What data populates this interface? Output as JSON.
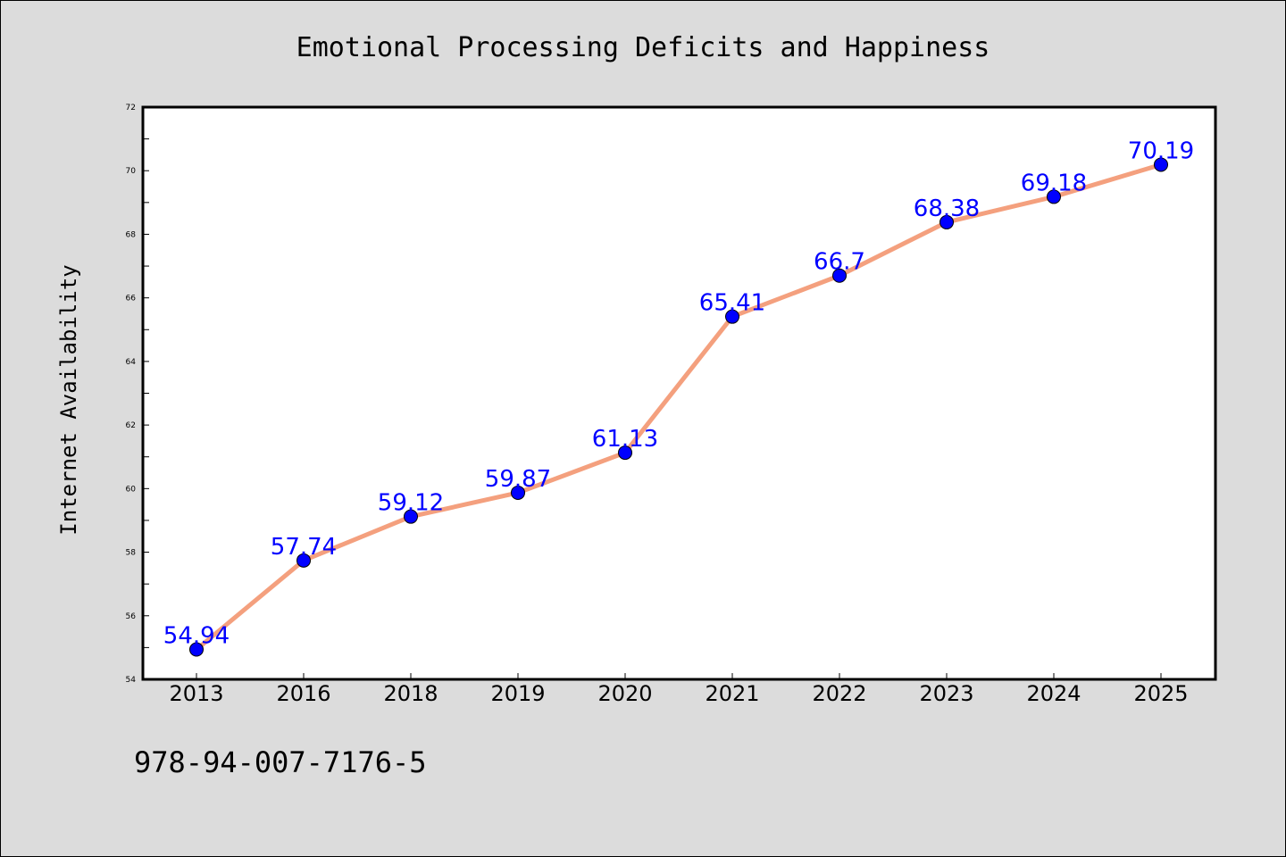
{
  "chart_data": {
    "type": "line",
    "title": "Emotional Processing Deficits and Happiness",
    "xlabel": "",
    "ylabel": "Internet Availability",
    "categories": [
      "2013",
      "2016",
      "2018",
      "2019",
      "2020",
      "2021",
      "2022",
      "2023",
      "2024",
      "2025"
    ],
    "series": [
      {
        "values": [
          54.94,
          57.74,
          59.12,
          59.87,
          61.13,
          65.41,
          66.7,
          68.38,
          69.18,
          70.19
        ]
      }
    ],
    "data_labels": [
      "54.94",
      "57.74",
      "59.12",
      "59.87",
      "61.13",
      "65.41",
      "66.7",
      "68.38",
      "69.18",
      "70.19"
    ],
    "ylim": [
      54,
      72
    ],
    "yticks": [
      "54",
      "56",
      "58",
      "60",
      "62",
      "64",
      "66",
      "68",
      "70",
      "72"
    ],
    "grid": false,
    "legend": "none",
    "colors": {
      "line": "#f4a07e",
      "marker": "#0000ff",
      "data_label": "#0000ff",
      "background": "#dcdcdc",
      "plot_area": "#ffffff"
    }
  },
  "footer": {
    "isbn": "978-94-007-7176-5"
  }
}
